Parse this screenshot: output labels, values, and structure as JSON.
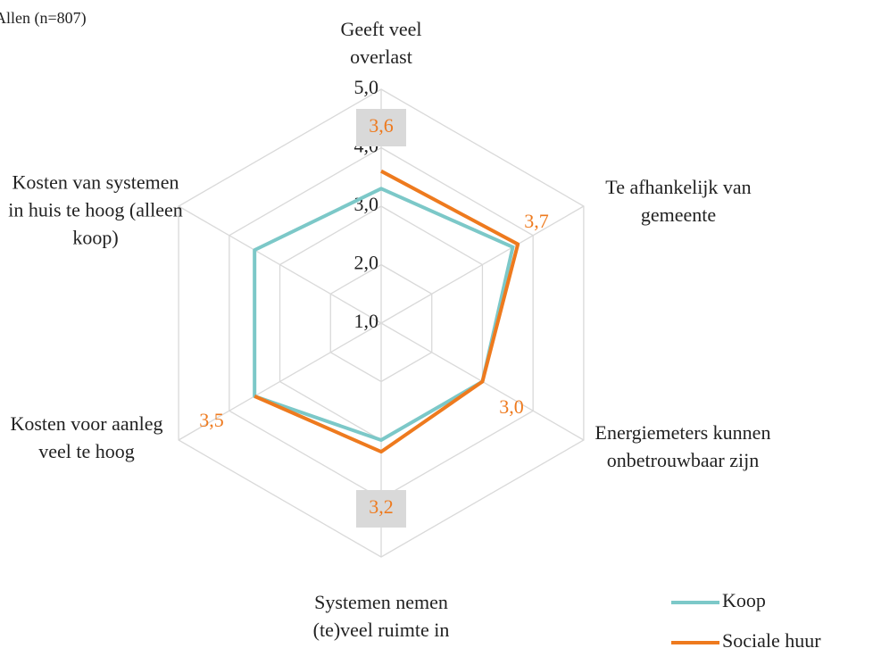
{
  "chart_data": {
    "type": "radar",
    "title": "Allen (n=807)",
    "categories": [
      "Geeft veel overlast",
      "Te afhankelijk van gemeente",
      "Energiemeters kunnen onbetrouwbaar zijn",
      "Systemen nemen (te)veel ruimte in",
      "Kosten voor aanleg veel te hoog",
      "Kosten van systemen in huis te hoog (alleen koop)"
    ],
    "series": [
      {
        "name": "Koop",
        "color": "#7cc8c8",
        "values": [
          3.3,
          3.6,
          3.0,
          3.0,
          3.5,
          3.5
        ]
      },
      {
        "name": "Sociale huur",
        "color": "#ee7a1e",
        "values": [
          3.6,
          3.7,
          3.0,
          3.2,
          3.5,
          null
        ],
        "value_labels": [
          "3,6",
          "3,7",
          "3,0",
          "3,2",
          "3,5",
          null
        ]
      }
    ],
    "ylim": [
      1,
      5
    ],
    "yticks": [
      {
        "value": 1,
        "label": "1,0"
      },
      {
        "value": 2,
        "label": "2,0"
      },
      {
        "value": 3,
        "label": "3,0"
      },
      {
        "value": 4,
        "label": "4,0"
      },
      {
        "value": 5,
        "label": "5,0"
      }
    ],
    "grid": true,
    "legend": "lower right"
  }
}
